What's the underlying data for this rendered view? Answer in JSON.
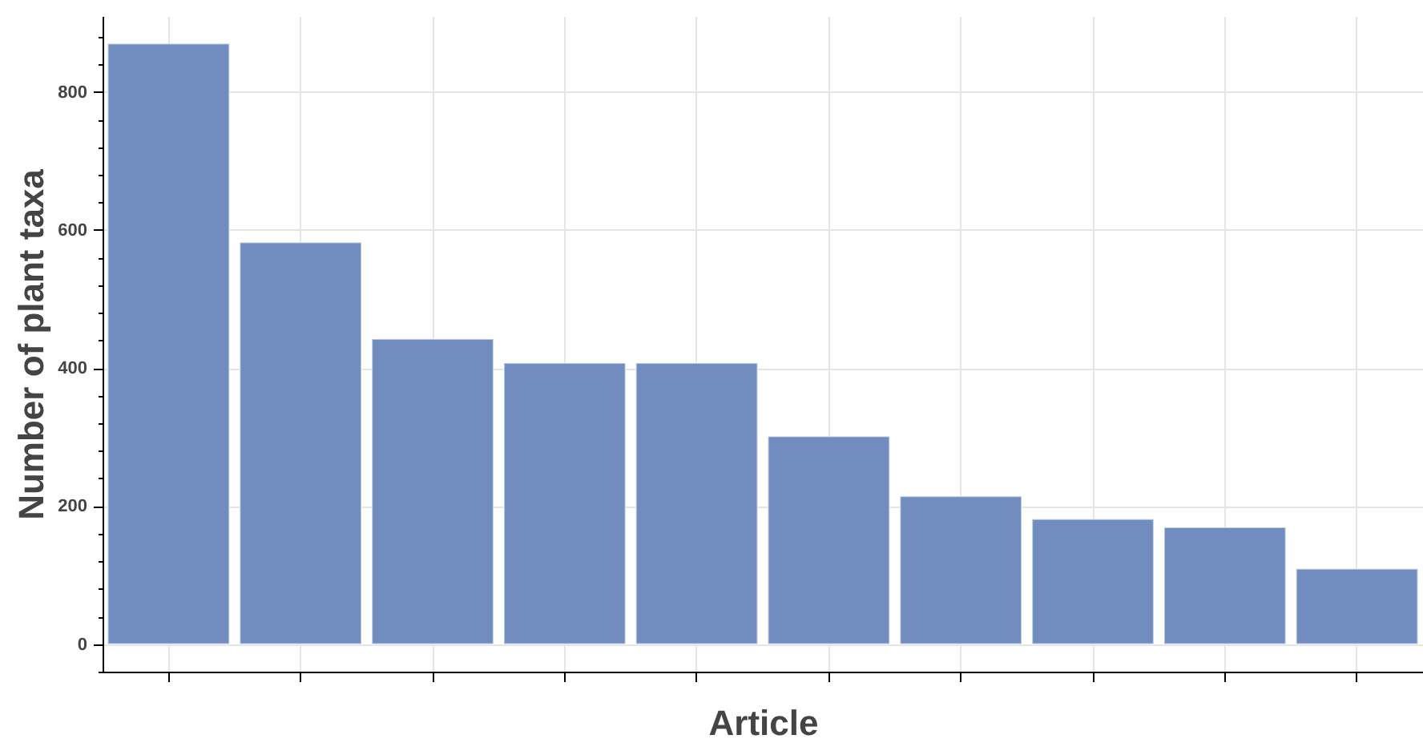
{
  "chart_data": {
    "type": "bar",
    "xlabel": "Article",
    "ylabel": "Number of plant taxa",
    "categories": [
      null,
      null,
      null,
      null,
      null,
      null,
      null,
      null,
      null,
      null
    ],
    "values": [
      870,
      582,
      442,
      407,
      407,
      301,
      214,
      181,
      169,
      109
    ],
    "color": "#718dbf",
    "ylim": [
      -40,
      910
    ],
    "yticks": [
      {
        "value": -40,
        "label": null
      },
      0,
      {
        "value": 40,
        "label": null
      },
      {
        "value": 80,
        "label": null
      },
      {
        "value": 120,
        "label": null
      },
      {
        "value": 160,
        "label": null
      },
      200,
      {
        "value": 240,
        "label": null
      },
      {
        "value": 280,
        "label": null
      },
      {
        "value": 320,
        "label": null
      },
      {
        "value": 360,
        "label": null
      },
      400,
      {
        "value": 440,
        "label": null
      },
      {
        "value": 480,
        "label": null
      },
      {
        "value": 520,
        "label": null
      },
      {
        "value": 560,
        "label": null
      },
      600,
      {
        "value": 640,
        "label": null
      },
      {
        "value": 680,
        "label": null
      },
      {
        "value": 720,
        "label": null
      },
      {
        "value": 760,
        "label": null
      },
      800,
      {
        "value": 840,
        "label": null
      },
      {
        "value": 880,
        "label": null
      }
    ],
    "grid": true
  }
}
